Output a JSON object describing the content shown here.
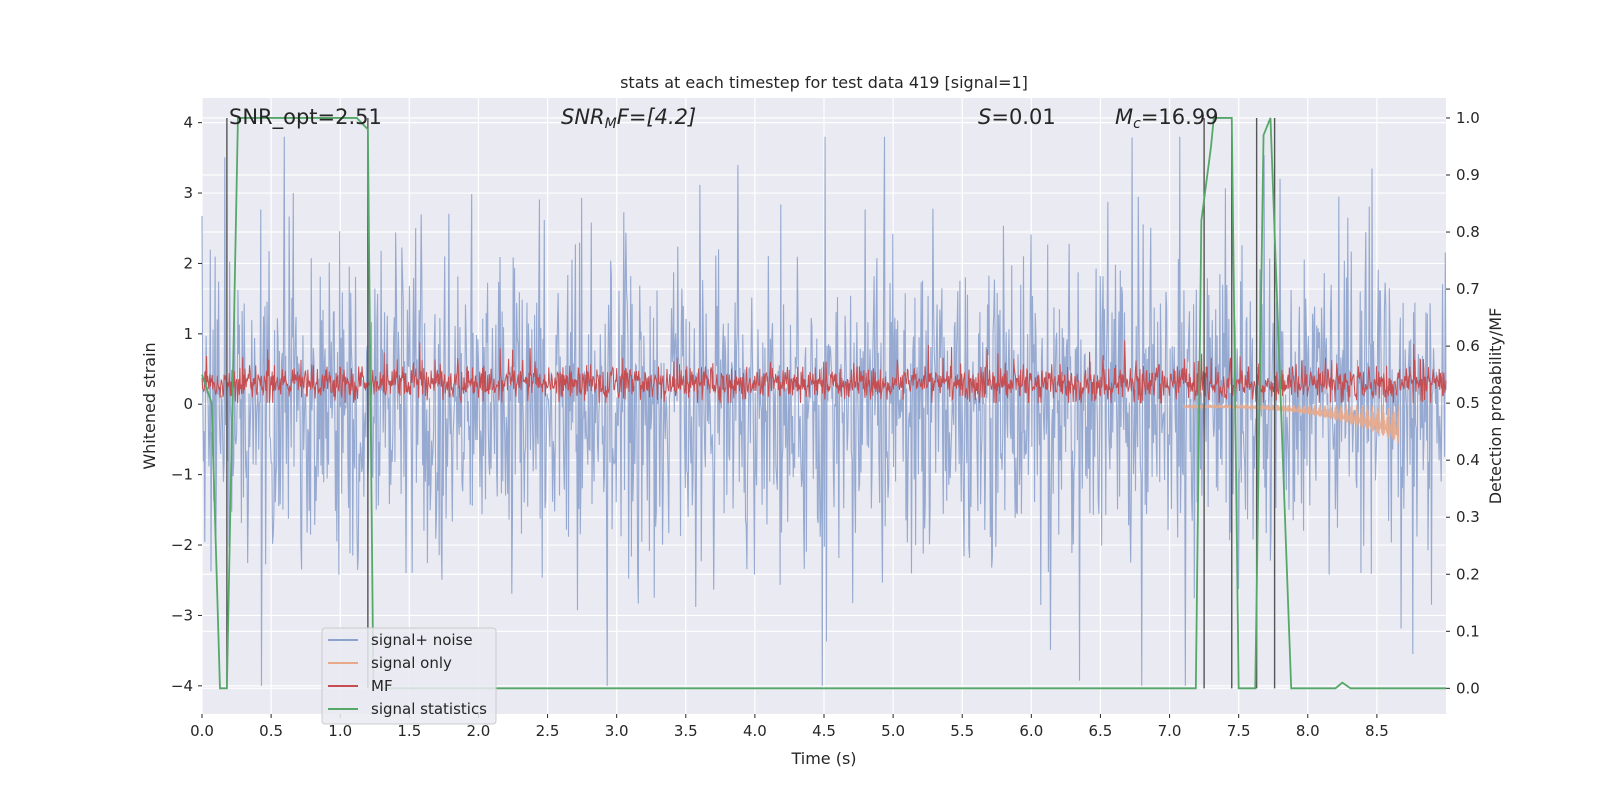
{
  "chart_data": {
    "type": "line",
    "title": "stats at each timestep for test data 419 [signal=1]",
    "xlabel": "Time (s)",
    "ylabel_left": "Whitened strain",
    "ylabel_right": "Detection probability/MF",
    "xlim": [
      0,
      9.0
    ],
    "ylim_left": [
      -4.4,
      4.35
    ],
    "ylim_right": [
      -0.045,
      1.035
    ],
    "x_ticks": [
      0.0,
      0.5,
      1.0,
      1.5,
      2.0,
      2.5,
      3.0,
      3.5,
      4.0,
      4.5,
      5.0,
      5.5,
      6.0,
      6.5,
      7.0,
      7.5,
      8.0,
      8.5
    ],
    "x_tick_labels": [
      "0.0",
      "0.5",
      "1.0",
      "1.5",
      "2.0",
      "2.5",
      "3.0",
      "3.5",
      "4.0",
      "4.5",
      "5.0",
      "5.5",
      "6.0",
      "6.5",
      "7.0",
      "7.5",
      "8.0",
      "8.5"
    ],
    "y_left_ticks": [
      4,
      3,
      2,
      1,
      0,
      -1,
      -2,
      -3,
      -4
    ],
    "y_left_tick_labels": [
      "4",
      "3",
      "2",
      "1",
      "0",
      "−1",
      "−2",
      "−3",
      "−4"
    ],
    "y_right_ticks": [
      1.0,
      0.9,
      0.8,
      0.7,
      0.6,
      0.5,
      0.4,
      0.3,
      0.2,
      0.1,
      0.0
    ],
    "y_right_tick_labels": [
      "1.0",
      "0.9",
      "0.8",
      "0.7",
      "0.6",
      "0.5",
      "0.4",
      "0.3",
      "0.2",
      "0.1",
      "0.0"
    ],
    "grid": true,
    "legend_position": "lower-left",
    "annotations": {
      "snr_opt": "SNR_opt=2.51",
      "snr_mf_label": "SNR",
      "snr_mf_sub": "M",
      "snr_mf_suffix": "F=[4.2]",
      "s_label": "S",
      "s_value": "=0.01",
      "mc_label": "M",
      "mc_sub": "c",
      "mc_value": "=16.99"
    },
    "series": [
      {
        "name": "signal+ noise",
        "color": "#8da2cc",
        "axis": "left",
        "envelope": {
          "t_start": 0,
          "t_end": 9.0,
          "typical_amplitude": 1.6,
          "peak_max": 3.8,
          "peak_min": -4.0
        }
      },
      {
        "name": "signal only",
        "color": "#e8a98a",
        "axis": "left",
        "chirp": {
          "t_start": 7.1,
          "t_end": 8.66,
          "min_at_end": -0.5
        }
      },
      {
        "name": "MF",
        "color": "#c44e52",
        "axis": "left",
        "band": {
          "low": 0.05,
          "high": 0.6,
          "peak_max": 1.0
        }
      },
      {
        "name": "signal statistics",
        "color": "#55a868",
        "axis": "right",
        "x": [
          0.0,
          0.07,
          0.13,
          0.18,
          0.26,
          1.0,
          1.12,
          1.2,
          1.24,
          1.3,
          7.19,
          7.23,
          7.3,
          7.32,
          7.42,
          7.45,
          7.5,
          7.62,
          7.68,
          7.73,
          7.88,
          8.2,
          8.25,
          8.31,
          9.0
        ],
        "y": [
          0.55,
          0.5,
          0.0,
          0.0,
          1.0,
          1.0,
          1.0,
          0.98,
          0.0,
          0.0,
          0.0,
          0.82,
          0.95,
          1.0,
          1.0,
          1.0,
          0.0,
          0.0,
          0.97,
          1.0,
          0.0,
          0.0,
          0.01,
          0.0,
          0.0
        ]
      }
    ],
    "vertical_lines_x": [
      0.18,
      1.2,
      7.25,
      7.45,
      7.63,
      7.76
    ]
  }
}
